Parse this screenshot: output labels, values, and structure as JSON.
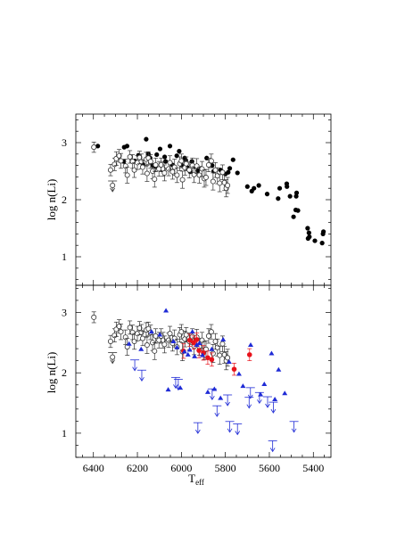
{
  "chart_data": [
    {
      "type": "scatter",
      "panel": "top",
      "title": "",
      "ylabel": "log n(Li)",
      "xlim": [
        6480,
        5320
      ],
      "ylim": [
        0.5,
        3.5
      ],
      "x_ticks": [
        6400,
        6200,
        6000,
        5800,
        5600,
        5400
      ],
      "y_ticks": [
        1,
        2,
        3
      ],
      "grid": false,
      "series": [
        {
          "marker": "filled-circle-black",
          "x": [
            6380,
            6262,
            6260,
            6247,
            6212,
            6195,
            6175,
            6160,
            6150,
            6142,
            6130,
            6118,
            6112,
            6097,
            6088,
            6076,
            6072,
            6052,
            6041,
            6021,
            6010,
            6000,
            5985,
            5980,
            5972,
            5960,
            5952,
            5940,
            5926,
            5910,
            5885,
            5860,
            5853,
            5822,
            5800,
            5787,
            5780,
            5765,
            5745,
            5700,
            5680,
            5670,
            5648,
            5610,
            5560,
            5553,
            5521,
            5520,
            5506,
            5490,
            5480,
            5478,
            5476,
            5470,
            5426,
            5424,
            5420,
            5418,
            5393,
            5360,
            5356,
            5354
          ],
          "y": [
            2.94,
            2.67,
            2.92,
            2.94,
            2.68,
            2.78,
            2.62,
            3.06,
            2.8,
            2.73,
            2.6,
            2.58,
            2.79,
            2.89,
            2.53,
            2.75,
            2.67,
            2.94,
            2.61,
            2.77,
            2.85,
            2.61,
            2.73,
            2.69,
            2.56,
            2.49,
            2.67,
            2.58,
            2.51,
            2.55,
            2.73,
            2.6,
            2.5,
            2.52,
            2.45,
            2.48,
            2.55,
            2.7,
            2.47,
            2.23,
            2.15,
            2.2,
            2.25,
            2.1,
            2.02,
            2.2,
            2.28,
            2.23,
            2.06,
            1.7,
            1.82,
            2.06,
            2.12,
            1.81,
            1.5,
            1.32,
            1.42,
            1.35,
            1.28,
            1.24,
            1.4,
            1.44
          ]
        },
        {
          "marker": "open-circle-errorbar",
          "x": [
            6398,
            6322,
            6304,
            6296,
            6283,
            6275,
            6254,
            6246,
            6234,
            6222,
            6214,
            6200,
            6190,
            6182,
            6176,
            6160,
            6156,
            6150,
            6140,
            6131,
            6122,
            6117,
            6102,
            6092,
            6083,
            6077,
            6058,
            6052,
            6040,
            6031,
            6020,
            6007,
            6000,
            5995,
            5984,
            5978,
            5964,
            5950,
            5942,
            5930,
            5918,
            5906,
            5896,
            5888,
            5876,
            5864,
            5856,
            5845,
            5836,
            5826,
            5813,
            5804,
            5796,
            5790
          ],
          "y": [
            2.92,
            2.52,
            2.62,
            2.72,
            2.77,
            2.68,
            2.59,
            2.43,
            2.75,
            2.67,
            2.52,
            2.65,
            2.74,
            2.67,
            2.57,
            2.71,
            2.46,
            2.73,
            2.67,
            2.5,
            2.36,
            2.61,
            2.54,
            2.61,
            2.54,
            2.47,
            2.54,
            2.65,
            2.49,
            2.57,
            2.43,
            2.63,
            2.68,
            2.35,
            2.56,
            2.63,
            2.52,
            2.6,
            2.44,
            2.59,
            2.43,
            2.54,
            2.37,
            2.39,
            2.61,
            2.68,
            2.32,
            2.52,
            2.42,
            2.29,
            2.48,
            2.3,
            2.2,
            2.25
          ],
          "errors": [
            0.09,
            0.1,
            0.11,
            0.12,
            0.11,
            0.13,
            0.12,
            0.14,
            0.11,
            0.12,
            0.13,
            0.12,
            0.11,
            0.13,
            0.12,
            0.12,
            0.14,
            0.11,
            0.12,
            0.13,
            0.14,
            0.12,
            0.13,
            0.12,
            0.13,
            0.14,
            0.12,
            0.12,
            0.13,
            0.14,
            0.13,
            0.12,
            0.12,
            0.15,
            0.13,
            0.12,
            0.14,
            0.13,
            0.14,
            0.13,
            0.14,
            0.13,
            0.15,
            0.14,
            0.12,
            0.12,
            0.15,
            0.13,
            0.14,
            0.15,
            0.13,
            0.14,
            0.15,
            0.14
          ]
        },
        {
          "marker": "open-circle-upper-limit",
          "x": [
            6313
          ],
          "y": [
            2.25
          ]
        }
      ]
    },
    {
      "type": "scatter",
      "panel": "bottom",
      "title": "",
      "xlabel": "T",
      "xlabel_sub": "eff",
      "ylabel": "log n(Li)",
      "xlim": [
        6480,
        5320
      ],
      "ylim": [
        0.6,
        3.45
      ],
      "x_ticks": [
        6400,
        6200,
        6000,
        5800,
        5600,
        5400
      ],
      "y_ticks": [
        1,
        2,
        3
      ],
      "grid": false,
      "series": [
        {
          "marker": "open-circle-errorbar",
          "x": [
            6398,
            6322,
            6304,
            6296,
            6283,
            6275,
            6254,
            6246,
            6234,
            6222,
            6214,
            6200,
            6190,
            6182,
            6176,
            6160,
            6156,
            6150,
            6140,
            6131,
            6122,
            6117,
            6102,
            6092,
            6083,
            6077,
            6058,
            6052,
            6040,
            6031,
            6020,
            6007,
            6000,
            5995,
            5984,
            5978,
            5964,
            5950,
            5942,
            5930,
            5918,
            5906,
            5896,
            5888,
            5876,
            5864,
            5856,
            5845,
            5836,
            5826,
            5813,
            5804,
            5796,
            5790
          ],
          "y": [
            2.92,
            2.52,
            2.62,
            2.72,
            2.77,
            2.68,
            2.59,
            2.43,
            2.75,
            2.67,
            2.52,
            2.65,
            2.74,
            2.67,
            2.57,
            2.71,
            2.46,
            2.73,
            2.67,
            2.5,
            2.36,
            2.61,
            2.54,
            2.61,
            2.54,
            2.47,
            2.54,
            2.65,
            2.49,
            2.57,
            2.43,
            2.63,
            2.68,
            2.35,
            2.56,
            2.63,
            2.52,
            2.6,
            2.44,
            2.59,
            2.43,
            2.54,
            2.37,
            2.39,
            2.61,
            2.68,
            2.32,
            2.52,
            2.42,
            2.29,
            2.48,
            2.3,
            2.2,
            2.25
          ],
          "errors": [
            0.09,
            0.1,
            0.11,
            0.12,
            0.11,
            0.13,
            0.12,
            0.14,
            0.11,
            0.12,
            0.13,
            0.12,
            0.11,
            0.13,
            0.12,
            0.12,
            0.14,
            0.11,
            0.12,
            0.13,
            0.14,
            0.12,
            0.13,
            0.12,
            0.13,
            0.14,
            0.12,
            0.12,
            0.13,
            0.14,
            0.13,
            0.12,
            0.12,
            0.15,
            0.13,
            0.12,
            0.14,
            0.13,
            0.14,
            0.13,
            0.14,
            0.13,
            0.15,
            0.14,
            0.12,
            0.12,
            0.15,
            0.13,
            0.14,
            0.15,
            0.13,
            0.14,
            0.15,
            0.14
          ]
        },
        {
          "marker": "open-circle-upper-limit",
          "x": [
            6313
          ],
          "y": [
            2.26
          ]
        },
        {
          "marker": "filled-circle-red-errorbar",
          "x": [
            5990,
            5962,
            5944,
            5930,
            5920,
            5900,
            5880,
            5862,
            5760,
            5690
          ],
          "y": [
            2.36,
            2.54,
            2.5,
            2.55,
            2.37,
            2.33,
            2.25,
            2.22,
            2.06,
            2.3
          ],
          "errors": [
            0.12,
            0.1,
            0.11,
            0.11,
            0.12,
            0.12,
            0.11,
            0.11,
            0.1,
            0.1
          ]
        },
        {
          "marker": "triangle-blue",
          "x": [
            6238,
            6183,
            6136,
            6098,
            6070,
            6060,
            6036,
            6020,
            6005,
            5986,
            5970,
            5962,
            5950,
            5940,
            5930,
            5918,
            5904,
            5880,
            5862,
            5850,
            5822,
            5810,
            5783,
            5738,
            5720,
            5685,
            5640,
            5623,
            5590,
            5575,
            5558,
            5530
          ],
          "y": [
            2.48,
            2.39,
            2.68,
            2.63,
            3.03,
            1.72,
            2.52,
            2.42,
            1.75,
            2.35,
            2.3,
            2.38,
            2.68,
            2.27,
            2.46,
            2.49,
            2.29,
            1.68,
            2.39,
            1.73,
            1.58,
            2.55,
            2.18,
            1.98,
            1.78,
            2.46,
            1.64,
            1.81,
            2.32,
            1.56,
            2.05,
            1.66
          ]
        },
        {
          "marker": "upper-limit-blue",
          "x": [
            6212,
            6180,
            6026,
            6014,
            5925,
            5860,
            5838,
            5790,
            5780,
            5745,
            5692,
            5686,
            5645,
            5608,
            5582,
            5488
          ],
          "y": [
            2.14,
            1.97,
            1.85,
            1.82,
            1.1,
            1.66,
            1.38,
            1.56,
            1.12,
            1.08,
            1.52,
            1.68,
            1.6,
            1.53,
            1.44,
            1.12
          ]
        },
        {
          "marker": "upper-limit-blue",
          "x": [
            5585
          ],
          "y": [
            0.8
          ]
        }
      ]
    }
  ]
}
